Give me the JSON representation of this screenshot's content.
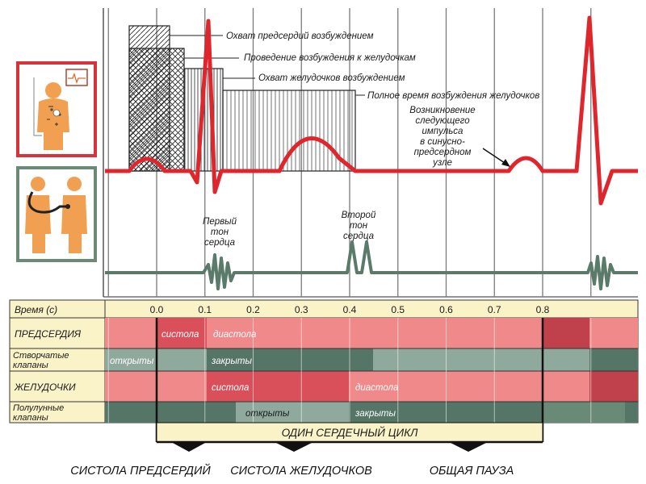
{
  "annotations": {
    "atrial_excitation": "Охват предсердий возбуждением",
    "conduction_to_ventricles": "Проведение возбуждения к желудочкам",
    "ventricular_excitation": "Охват желудочков возбуждением",
    "full_ventricular_time": "Полное время возбуждения желудочков",
    "next_impulse": [
      "Возникновение",
      "следующего",
      "импульса",
      "в синусно-",
      "предсердном",
      "узле"
    ],
    "first_sound": [
      "Первый",
      "тон",
      "сердца"
    ],
    "second_sound": [
      "Второй",
      "тон",
      "сердца"
    ]
  },
  "table": {
    "time_label": "Время (с)",
    "ticks": [
      "0.0",
      "0.1",
      "0.2",
      "0.3",
      "0.4",
      "0.5",
      "0.6",
      "0.7",
      "0.8"
    ],
    "rows": {
      "atria": "ПРЕДСЕРДИЯ",
      "av_valves": [
        "Створчатые",
        "клапаны"
      ],
      "ventricles": "ЖЕЛУДОЧКИ",
      "semilunar_valves": [
        "Полулунные",
        "клапаны"
      ]
    },
    "band_text": {
      "atria_systole": "систола",
      "atria_diastole": "диастола",
      "av_open": "открыты",
      "av_closed": "закрыты",
      "vent_systole": "систола",
      "vent_diastole": "диастола",
      "sl_open": "открыты",
      "sl_closed": "закрыты"
    }
  },
  "cycle_label": "ОДИН СЕРДЕЧНЫЙ ЦИКЛ",
  "phases": [
    "СИСТОЛА ПРЕДСЕРДИЙ",
    "СИСТОЛА ЖЕЛУДОЧКОВ",
    "ОБЩАЯ ПАУЗА"
  ],
  "icons": {
    "ecg_icon": "person-with-ecg-monitor-icon",
    "stethoscope_icon": "doctor-with-stethoscope-icon"
  },
  "colors": {
    "ecg_line": "#e0262d",
    "pcg_line": "#5a7a6a",
    "band_pink": "#f08a8a",
    "band_red": "#d9505a",
    "band_dark_red": "#c0404c",
    "band_gray": "#8fa99d",
    "band_dark_gray": "#557566",
    "panel_beige": "#fbf3c8",
    "icon_frame_red": "#d6333a",
    "icon_frame_gray": "#6a8a78"
  }
}
